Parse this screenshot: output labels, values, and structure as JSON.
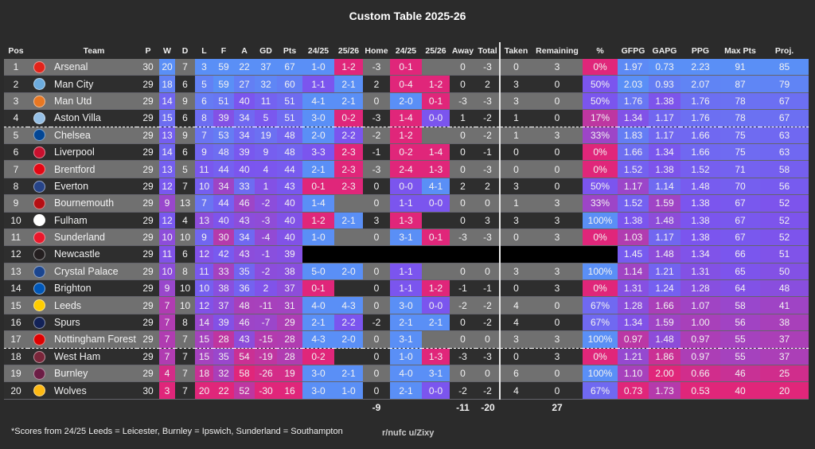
{
  "title": "Custom Table 2025-26",
  "colors": {
    "blue": "#5a8ff6",
    "purple": "#7b55ee",
    "pink": "#e0267a",
    "row_light": "#707070",
    "row_dark": "#2e2e2e",
    "background": "#2b2b2b"
  },
  "headers": {
    "pos": "Pos",
    "team": "Team",
    "p": "P",
    "w": "W",
    "d": "D",
    "l": "L",
    "f": "F",
    "a": "A",
    "gd": "GD",
    "pts": "Pts",
    "home_2425": "24/25",
    "home_2526": "25/26",
    "home": "Home",
    "away_2425": "24/25",
    "away_2526": "25/26",
    "away": "Away",
    "total": "Total",
    "taken": "Taken",
    "remaining": "Remaining",
    "pct": "%",
    "gfpg": "GFPG",
    "gapg": "GAPG",
    "ppg": "PPG",
    "maxpts": "Max Pts",
    "proj": "Proj."
  },
  "rows": [
    {
      "pos": "1",
      "team": "Arsenal",
      "crest": "#e2231a",
      "p": 30,
      "w": 20,
      "d": 7,
      "l": 3,
      "f": 59,
      "a": 22,
      "gd": 37,
      "pts": 67,
      "h1": [
        "1-0",
        "blue"
      ],
      "h2": [
        "1-2",
        "pink"
      ],
      "home": -3,
      "a1": [
        "0-1",
        "pink"
      ],
      "a2": null,
      "away": 0,
      "total": -3,
      "taken": 0,
      "remaining": 3,
      "pct": "0%",
      "gfpg": "1.97",
      "gapg": "0.73",
      "ppg": "2.23",
      "maxpts": 91,
      "proj": 85
    },
    {
      "pos": "2",
      "team": "Man City",
      "crest": "#6cabdd",
      "p": 29,
      "w": 18,
      "d": 6,
      "l": 5,
      "f": 59,
      "a": 27,
      "gd": 32,
      "pts": 60,
      "h1": [
        "1-1",
        "purple"
      ],
      "h2": [
        "2-1",
        "blue"
      ],
      "home": 2,
      "a1": [
        "0-4",
        "pink"
      ],
      "a2": [
        "1-2",
        "pink"
      ],
      "away": 0,
      "total": 2,
      "taken": 3,
      "remaining": 0,
      "pct": "50%",
      "gfpg": "2.03",
      "gapg": "0.93",
      "ppg": "2.07",
      "maxpts": 87,
      "proj": 79
    },
    {
      "pos": "3",
      "team": "Man Utd",
      "crest": "#e87722",
      "p": 29,
      "w": 14,
      "d": 9,
      "l": 6,
      "f": 51,
      "a": 40,
      "gd": 11,
      "pts": 51,
      "h1": [
        "4-1",
        "blue"
      ],
      "h2": [
        "2-1",
        "blue"
      ],
      "home": 0,
      "a1": [
        "2-0",
        "blue"
      ],
      "a2": [
        "0-1",
        "pink"
      ],
      "away": -3,
      "total": -3,
      "taken": 3,
      "remaining": 0,
      "pct": "50%",
      "gfpg": "1.76",
      "gapg": "1.38",
      "ppg": "1.76",
      "maxpts": 78,
      "proj": 67
    },
    {
      "pos": "4",
      "team": "Aston Villa",
      "crest": "#95bfe5",
      "p": 29,
      "w": 15,
      "d": 6,
      "l": 8,
      "f": 39,
      "a": 34,
      "gd": 5,
      "pts": 51,
      "h1": [
        "3-0",
        "blue"
      ],
      "h2": [
        "0-2",
        "pink"
      ],
      "home": -3,
      "a1": [
        "1-4",
        "pink"
      ],
      "a2": [
        "0-0",
        "purple"
      ],
      "away": 1,
      "total": -2,
      "taken": 1,
      "remaining": 0,
      "pct": "17%",
      "gfpg": "1.34",
      "gapg": "1.17",
      "ppg": "1.76",
      "maxpts": 78,
      "proj": 67,
      "dash": true
    },
    {
      "pos": "5",
      "team": "Chelsea",
      "crest": "#034694",
      "p": 29,
      "w": 13,
      "d": 9,
      "l": 7,
      "f": 53,
      "a": 34,
      "gd": 19,
      "pts": 48,
      "h1": [
        "2-0",
        "blue"
      ],
      "h2": [
        "2-2",
        "purple"
      ],
      "home": -2,
      "a1": [
        "1-2",
        "pink"
      ],
      "a2": null,
      "away": 0,
      "total": -2,
      "taken": 1,
      "remaining": 3,
      "pct": "33%",
      "gfpg": "1.83",
      "gapg": "1.17",
      "ppg": "1.66",
      "maxpts": 75,
      "proj": 63
    },
    {
      "pos": "6",
      "team": "Liverpool",
      "crest": "#c8102e",
      "p": 29,
      "w": 14,
      "d": 6,
      "l": 9,
      "f": 48,
      "a": 39,
      "gd": 9,
      "pts": 48,
      "h1": [
        "3-3",
        "purple"
      ],
      "h2": [
        "2-3",
        "pink"
      ],
      "home": -1,
      "a1": [
        "0-2",
        "pink"
      ],
      "a2": [
        "1-4",
        "pink"
      ],
      "away": 0,
      "total": -1,
      "taken": 0,
      "remaining": 0,
      "pct": "0%",
      "gfpg": "1.66",
      "gapg": "1.34",
      "ppg": "1.66",
      "maxpts": 75,
      "proj": 63
    },
    {
      "pos": "7",
      "team": "Brentford",
      "crest": "#e30613",
      "p": 29,
      "w": 13,
      "d": 5,
      "l": 11,
      "f": 44,
      "a": 40,
      "gd": 4,
      "pts": 44,
      "h1": [
        "2-1",
        "blue"
      ],
      "h2": [
        "2-3",
        "pink"
      ],
      "home": -3,
      "a1": [
        "2-4",
        "pink"
      ],
      "a2": [
        "1-3",
        "pink"
      ],
      "away": 0,
      "total": -3,
      "taken": 0,
      "remaining": 0,
      "pct": "0%",
      "gfpg": "1.52",
      "gapg": "1.38",
      "ppg": "1.52",
      "maxpts": 71,
      "proj": 58
    },
    {
      "pos": "8",
      "team": "Everton",
      "crest": "#274488",
      "p": 29,
      "w": 12,
      "d": 7,
      "l": 10,
      "f": 34,
      "a": 33,
      "gd": 1,
      "pts": 43,
      "h1": [
        "0-1",
        "pink"
      ],
      "h2": [
        "2-3",
        "pink"
      ],
      "home": 0,
      "a1": [
        "0-0",
        "purple"
      ],
      "a2": [
        "4-1",
        "blue"
      ],
      "away": 2,
      "total": 2,
      "taken": 3,
      "remaining": 0,
      "pct": "50%",
      "gfpg": "1.17",
      "gapg": "1.14",
      "ppg": "1.48",
      "maxpts": 70,
      "proj": 56
    },
    {
      "pos": "9",
      "team": "Bournemouth",
      "crest": "#b50e12",
      "p": 29,
      "w": 9,
      "d": 13,
      "l": 7,
      "f": 44,
      "a": 46,
      "gd": -2,
      "pts": 40,
      "h1": [
        "1-4",
        "blue"
      ],
      "h2": null,
      "home": 0,
      "a1": [
        "1-1",
        "purple"
      ],
      "a2": [
        "0-0",
        "purple"
      ],
      "away": 0,
      "total": 0,
      "taken": 1,
      "remaining": 3,
      "pct": "33%",
      "gfpg": "1.52",
      "gapg": "1.59",
      "ppg": "1.38",
      "maxpts": 67,
      "proj": 52
    },
    {
      "pos": "10",
      "team": "Fulham",
      "crest": "#ffffff",
      "p": 29,
      "w": 12,
      "d": 4,
      "l": 13,
      "f": 40,
      "a": 43,
      "gd": -3,
      "pts": 40,
      "h1": [
        "1-2",
        "pink"
      ],
      "h2": [
        "2-1",
        "blue"
      ],
      "home": 3,
      "a1": [
        "1-3",
        "pink"
      ],
      "a2": null,
      "away": 0,
      "total": 3,
      "taken": 3,
      "remaining": 3,
      "pct": "100%",
      "gfpg": "1.38",
      "gapg": "1.48",
      "ppg": "1.38",
      "maxpts": 67,
      "proj": 52
    },
    {
      "pos": "11",
      "team": "Sunderland",
      "crest": "#eb172b",
      "p": 29,
      "w": 10,
      "d": 10,
      "l": 9,
      "f": 30,
      "a": 34,
      "gd": -4,
      "pts": 40,
      "h1": [
        "1-0",
        "blue"
      ],
      "h2": null,
      "home": 0,
      "a1": [
        "3-1",
        "blue"
      ],
      "a2": [
        "0-1",
        "pink"
      ],
      "away": -3,
      "total": -3,
      "taken": 0,
      "remaining": 3,
      "pct": "0%",
      "gfpg": "1.03",
      "gapg": "1.17",
      "ppg": "1.38",
      "maxpts": 67,
      "proj": 52
    },
    {
      "pos": "12",
      "team": "Newcastle",
      "crest": "#241f20",
      "p": 29,
      "w": 11,
      "d": 6,
      "l": 12,
      "f": 42,
      "a": 43,
      "gd": -1,
      "pts": 39,
      "h1": null,
      "h2": null,
      "home": null,
      "a1": null,
      "a2": null,
      "away": null,
      "total": null,
      "taken": null,
      "remaining": null,
      "pct": null,
      "gfpg": "1.45",
      "gapg": "1.48",
      "ppg": "1.34",
      "maxpts": 66,
      "proj": 51,
      "blackout": true
    },
    {
      "pos": "13",
      "team": "Crystal Palace",
      "crest": "#1b458f",
      "p": 29,
      "w": 10,
      "d": 8,
      "l": 11,
      "f": 33,
      "a": 35,
      "gd": -2,
      "pts": 38,
      "h1": [
        "5-0",
        "blue"
      ],
      "h2": [
        "2-0",
        "blue"
      ],
      "home": 0,
      "a1": [
        "1-1",
        "purple"
      ],
      "a2": null,
      "away": 0,
      "total": 0,
      "taken": 3,
      "remaining": 3,
      "pct": "100%",
      "gfpg": "1.14",
      "gapg": "1.21",
      "ppg": "1.31",
      "maxpts": 65,
      "proj": 50
    },
    {
      "pos": "14",
      "team": "Brighton",
      "crest": "#0057b8",
      "p": 29,
      "w": 9,
      "d": 10,
      "l": 10,
      "f": 38,
      "a": 36,
      "gd": 2,
      "pts": 37,
      "h1": [
        "0-1",
        "pink"
      ],
      "h2": null,
      "home": 0,
      "a1": [
        "1-1",
        "purple"
      ],
      "a2": [
        "1-2",
        "pink"
      ],
      "away": -1,
      "total": -1,
      "taken": 0,
      "remaining": 3,
      "pct": "0%",
      "gfpg": "1.31",
      "gapg": "1.24",
      "ppg": "1.28",
      "maxpts": 64,
      "proj": 48
    },
    {
      "pos": "15",
      "team": "Leeds",
      "crest": "#ffcd00",
      "p": 29,
      "w": 7,
      "d": 10,
      "l": 12,
      "f": 37,
      "a": 48,
      "gd": -11,
      "pts": 31,
      "h1": [
        "4-0",
        "blue"
      ],
      "h2": [
        "4-3",
        "blue"
      ],
      "home": 0,
      "a1": [
        "3-0",
        "blue"
      ],
      "a2": [
        "0-0",
        "purple"
      ],
      "away": -2,
      "total": -2,
      "taken": 4,
      "remaining": 0,
      "pct": "67%",
      "gfpg": "1.28",
      "gapg": "1.66",
      "ppg": "1.07",
      "maxpts": 58,
      "proj": 41
    },
    {
      "pos": "16",
      "team": "Spurs",
      "crest": "#132257",
      "p": 29,
      "w": 7,
      "d": 8,
      "l": 14,
      "f": 39,
      "a": 46,
      "gd": -7,
      "pts": 29,
      "h1": [
        "2-1",
        "blue"
      ],
      "h2": [
        "2-2",
        "purple"
      ],
      "home": -2,
      "a1": [
        "2-1",
        "blue"
      ],
      "a2": [
        "2-1",
        "blue"
      ],
      "away": 0,
      "total": -2,
      "taken": 4,
      "remaining": 0,
      "pct": "67%",
      "gfpg": "1.34",
      "gapg": "1.59",
      "ppg": "1.00",
      "maxpts": 56,
      "proj": 38
    },
    {
      "pos": "17",
      "team": "Nottingham Forest",
      "crest": "#dd0000",
      "p": 29,
      "w": 7,
      "d": 7,
      "l": 15,
      "f": 28,
      "a": 43,
      "gd": -15,
      "pts": 28,
      "h1": [
        "4-3",
        "blue"
      ],
      "h2": [
        "2-0",
        "blue"
      ],
      "home": 0,
      "a1": [
        "3-1",
        "blue"
      ],
      "a2": null,
      "away": 0,
      "total": 0,
      "taken": 3,
      "remaining": 3,
      "pct": "100%",
      "gfpg": "0.97",
      "gapg": "1.48",
      "ppg": "0.97",
      "maxpts": 55,
      "proj": 37,
      "dash": true
    },
    {
      "pos": "18",
      "team": "West Ham",
      "crest": "#7a263a",
      "p": 29,
      "w": 7,
      "d": 7,
      "l": 15,
      "f": 35,
      "a": 54,
      "gd": -19,
      "pts": 28,
      "h1": [
        "0-2",
        "pink"
      ],
      "h2": null,
      "home": 0,
      "a1": [
        "1-0",
        "blue"
      ],
      "a2": [
        "1-3",
        "pink"
      ],
      "away": -3,
      "total": -3,
      "taken": 0,
      "remaining": 3,
      "pct": "0%",
      "gfpg": "1.21",
      "gapg": "1.86",
      "ppg": "0.97",
      "maxpts": 55,
      "proj": 37
    },
    {
      "pos": "19",
      "team": "Burnley",
      "crest": "#6c1d45",
      "p": 29,
      "w": 4,
      "d": 7,
      "l": 18,
      "f": 32,
      "a": 58,
      "gd": -26,
      "pts": 19,
      "h1": [
        "3-0",
        "blue"
      ],
      "h2": [
        "2-1",
        "blue"
      ],
      "home": 0,
      "a1": [
        "4-0",
        "blue"
      ],
      "a2": [
        "3-1",
        "blue"
      ],
      "away": 0,
      "total": 0,
      "taken": 6,
      "remaining": 0,
      "pct": "100%",
      "gfpg": "1.10",
      "gapg": "2.00",
      "ppg": "0.66",
      "maxpts": 46,
      "proj": 25
    },
    {
      "pos": "20",
      "team": "Wolves",
      "crest": "#fdb913",
      "p": 30,
      "w": 3,
      "d": 7,
      "l": 20,
      "f": 22,
      "a": 52,
      "gd": -30,
      "pts": 16,
      "h1": [
        "3-0",
        "blue"
      ],
      "h2": [
        "1-0",
        "blue"
      ],
      "home": 0,
      "a1": [
        "2-1",
        "blue"
      ],
      "a2": [
        "0-0",
        "purple"
      ],
      "away": -2,
      "total": -2,
      "taken": 4,
      "remaining": 0,
      "pct": "67%",
      "gfpg": "0.73",
      "gapg": "1.73",
      "ppg": "0.53",
      "maxpts": 40,
      "proj": 20
    }
  ],
  "totals": {
    "home": "-9",
    "away": "-11",
    "total": "-20",
    "remaining": "27"
  },
  "footnote": "*Scores from 24/25 Leeds = Leicester, Burnley = Ipswich, Sunderland = Southampton",
  "credit": "r/nufc u/Zixy"
}
